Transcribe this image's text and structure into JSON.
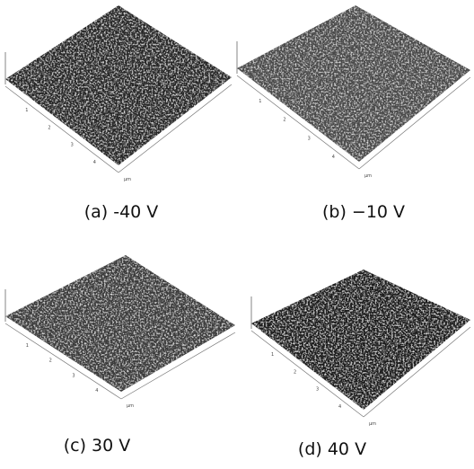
{
  "panels": [
    {
      "caption": "(a) -40 V",
      "ticks": [
        "1",
        "2",
        "3",
        "4"
      ],
      "unit": "μm"
    },
    {
      "caption": "(b) −10 V",
      "ticks": [
        "1",
        "2",
        "3",
        "4"
      ],
      "unit": "μm"
    },
    {
      "caption": "(c) 30 V",
      "ticks": [
        "1",
        "2",
        "3",
        "4"
      ],
      "unit": "μm"
    },
    {
      "caption": "(d) 40 V",
      "ticks": [
        "1",
        "2",
        "3",
        "4"
      ],
      "unit": "μm"
    }
  ]
}
